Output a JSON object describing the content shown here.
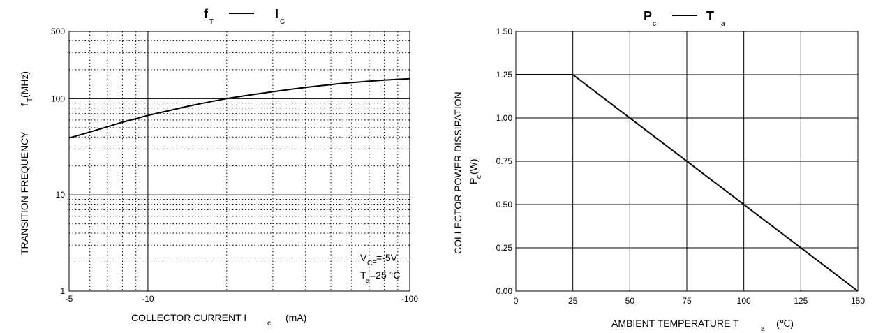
{
  "chart_data": [
    {
      "type": "line",
      "title_main": "f",
      "title_main_sub": "T",
      "title_dash": "——",
      "title_var": "I",
      "title_var_sub": "C",
      "xlabel": "COLLECTOR CURRENT I",
      "xlabel_sub": "c",
      "xlabel_unit": "(mA)",
      "ylabel": "TRANSITION FREQUENCY",
      "ylabel_symbol": "f",
      "ylabel_symbol_sub": "T",
      "ylabel_unit": "(MHz)",
      "x_scale": "log",
      "y_scale": "log",
      "xlim": [
        -5,
        -100
      ],
      "ylim": [
        1,
        500
      ],
      "x_ticks": [
        {
          "value": -5,
          "label": "-5"
        },
        {
          "value": -10,
          "label": "-10"
        },
        {
          "value": -100,
          "label": "-100"
        }
      ],
      "y_ticks": [
        {
          "value": 500,
          "label": "500"
        },
        {
          "value": 100,
          "label": "100"
        },
        {
          "value": 10,
          "label": "10"
        },
        {
          "value": 1,
          "label": "1"
        }
      ],
      "grid": true,
      "series": [
        {
          "x": [
            -5,
            -6,
            -7,
            -8,
            -9,
            -10,
            -12,
            -15,
            -20,
            -25,
            -30,
            -40,
            -50,
            -60,
            -70,
            -80,
            -100
          ],
          "y": [
            39,
            45,
            51,
            57,
            62,
            67,
            75,
            86,
            100,
            110,
            118,
            131,
            140,
            147,
            152,
            156,
            161
          ]
        }
      ],
      "annotations": [
        {
          "text": "V",
          "sub": "CE",
          "rest": "=-5V"
        },
        {
          "text": "T",
          "sub": "a",
          "rest": "=25 °C"
        }
      ]
    },
    {
      "type": "line",
      "title_main": "P",
      "title_main_sub": "c",
      "title_dash": "——",
      "title_var": "T",
      "title_var_sub": "a",
      "xlabel": "AMBIENT TEMPERATURE T",
      "xlabel_sub": "a",
      "xlabel_unit": "(℃)",
      "ylabel": "COLLECTOR POWER DISSIPATION",
      "ylabel_symbol": "P",
      "ylabel_symbol_sub": "c",
      "ylabel_unit": "(W)",
      "xlim": [
        0,
        150
      ],
      "ylim": [
        0,
        1.5
      ],
      "x_ticks": [
        "0",
        "25",
        "50",
        "75",
        "100",
        "125",
        "150"
      ],
      "y_ticks": [
        "0.00",
        "0.25",
        "0.50",
        "0.75",
        "1.00",
        "1.25",
        "1.50"
      ],
      "grid": true,
      "series": [
        {
          "x": [
            0,
            25,
            150
          ],
          "y": [
            1.25,
            1.25,
            0
          ]
        }
      ]
    }
  ]
}
